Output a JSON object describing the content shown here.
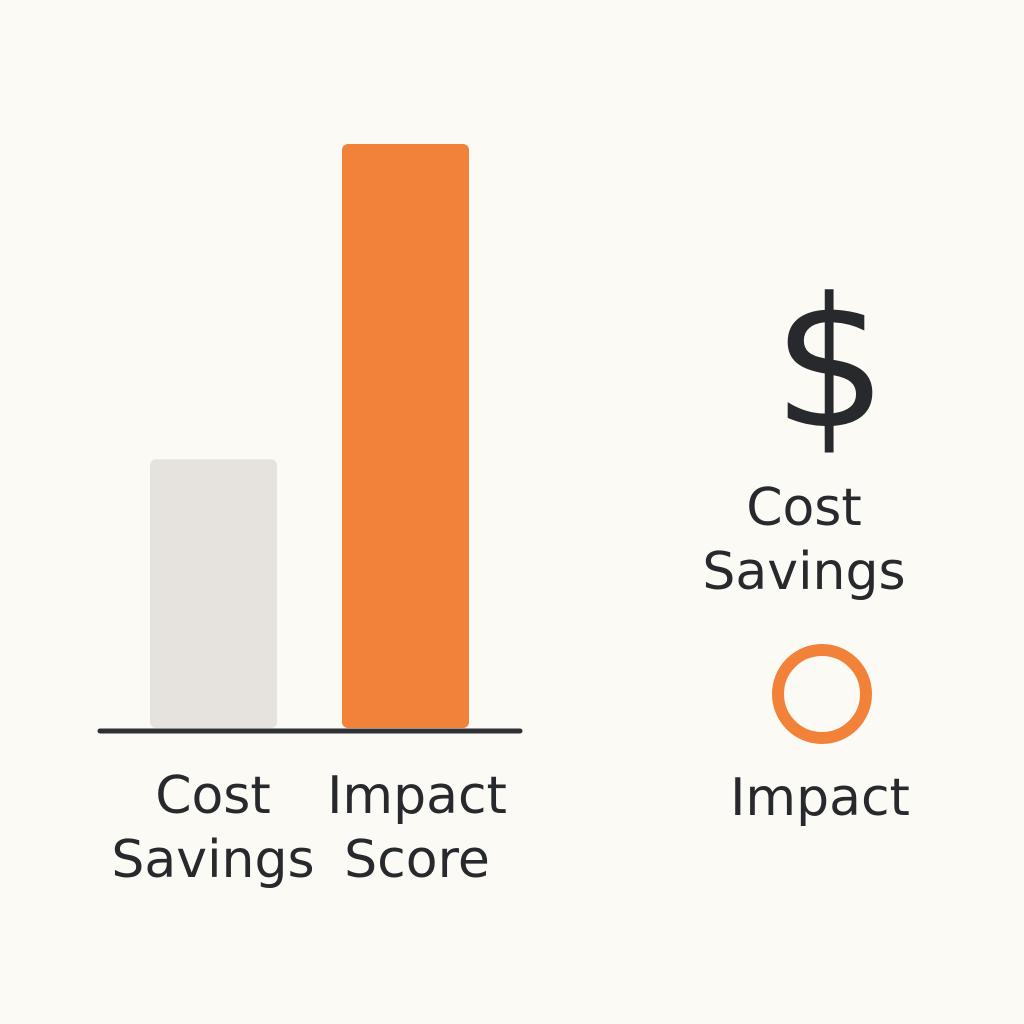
{
  "chart_data": {
    "type": "bar",
    "categories": [
      "Cost Savings",
      "Impact Score"
    ],
    "category_lines": [
      [
        "Cost",
        "Savings"
      ],
      [
        "Impact",
        "Score"
      ]
    ],
    "values": [
      46,
      100
    ],
    "ylim": [
      0,
      100
    ],
    "colors": [
      "#e6e3de",
      "#f2813a"
    ],
    "axis_color": "#2e3033",
    "title": "",
    "xlabel": "",
    "ylabel": "",
    "grid": false,
    "legend_placement": "right"
  },
  "legend": {
    "items": [
      {
        "icon": "dollar-icon",
        "glyph": "$",
        "label_lines": [
          "Cost",
          "Savings"
        ]
      },
      {
        "icon": "ring-icon",
        "label_lines": [
          "Impact"
        ],
        "color": "#f2813a"
      }
    ]
  }
}
